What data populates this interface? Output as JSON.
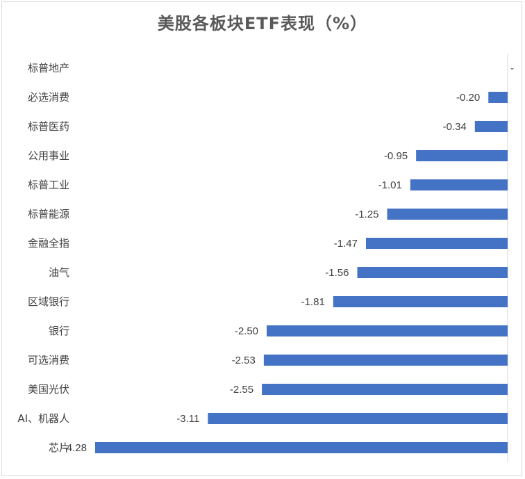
{
  "chart_data": {
    "type": "bar",
    "orientation": "horizontal",
    "title": "美股各板块ETF表现（%）",
    "categories": [
      "标普地产",
      "必选消费",
      "标普医药",
      "公用事业",
      "标普工业",
      "标普能源",
      "金融全指",
      "油气",
      "区域银行",
      "银行",
      "可选消费",
      "美国光伏",
      "AI、机器人",
      "芯片"
    ],
    "value_labels": [
      "-",
      "-0.20",
      "-0.34",
      "-0.95",
      "-1.01",
      "-1.25",
      "-1.47",
      "-1.56",
      "-1.81",
      "-2.50",
      "-2.53",
      "-2.55",
      "-3.11",
      "-4.28"
    ],
    "values": [
      0,
      -0.2,
      -0.34,
      -0.95,
      -1.01,
      -1.25,
      -1.47,
      -1.56,
      -1.81,
      -2.5,
      -2.53,
      -2.55,
      -3.11,
      -4.28
    ],
    "xlim": [
      -4.28,
      0
    ],
    "bar_color": "#4472C4",
    "grid": false,
    "legend": "none"
  }
}
